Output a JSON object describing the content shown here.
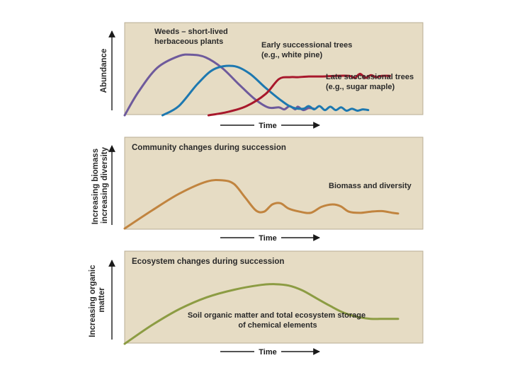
{
  "colors": {
    "panel_bg": "#e6dcc4",
    "panel_border": "#b8ad93",
    "weeds": "#6e5a9c",
    "early_trees": "#1d78b0",
    "late_trees": "#a8182c",
    "biomass": "#c1843f",
    "organic_matter": "#8c9c43"
  },
  "chart_data": [
    {
      "type": "line",
      "title": "",
      "xlabel": "Time",
      "ylabel": "Abundance",
      "xlim": [
        0,
        100
      ],
      "ylim": [
        0,
        100
      ],
      "grid": false,
      "series": [
        {
          "name": "Weeds – short-lived herbaceous plants",
          "color": "#6e5a9c",
          "x": [
            0,
            5,
            12,
            20,
            25,
            30,
            36,
            42,
            48,
            53,
            57,
            59,
            61,
            63,
            64,
            66,
            68,
            70
          ],
          "y": [
            0,
            35,
            72,
            90,
            92,
            88,
            72,
            48,
            25,
            12,
            12,
            9,
            14,
            9,
            13,
            8,
            11,
            10
          ]
        },
        {
          "name": "Early successional trees (e.g., white pine)",
          "color": "#1d78b0",
          "x": [
            14,
            20,
            27,
            33,
            40,
            46,
            52,
            58,
            62,
            66,
            68,
            70,
            72,
            74,
            76,
            78,
            80,
            82,
            84,
            86,
            88,
            90
          ],
          "y": [
            0,
            14,
            48,
            70,
            75,
            64,
            42,
            22,
            12,
            10,
            14,
            9,
            14,
            8,
            13,
            8,
            12,
            7,
            10,
            7,
            9,
            8
          ]
        },
        {
          "name": "Late successional trees (e.g., sugar maple)",
          "color": "#a8182c",
          "x": [
            31,
            38,
            45,
            52,
            57,
            61,
            64,
            68,
            73,
            78,
            83,
            85,
            87,
            89,
            91,
            93,
            95,
            98
          ],
          "y": [
            0,
            5,
            14,
            32,
            55,
            58,
            58,
            59,
            59,
            60,
            60,
            57,
            63,
            57,
            61,
            58,
            60,
            60
          ]
        }
      ]
    },
    {
      "type": "line",
      "title": "Community changes during succession",
      "xlabel": "Time",
      "ylabel": "Increasing biomass increasing diversity",
      "xlim": [
        0,
        100
      ],
      "ylim": [
        0,
        100
      ],
      "grid": false,
      "series": [
        {
          "name": "Biomass and diversity",
          "color": "#c1843f",
          "x": [
            0,
            10,
            20,
            30,
            36,
            40,
            44,
            48,
            51,
            54,
            57,
            60,
            64,
            68,
            72,
            76,
            79,
            82,
            86,
            90,
            94,
            98,
            100
          ],
          "y": [
            0,
            30,
            58,
            78,
            80,
            74,
            52,
            30,
            28,
            40,
            42,
            33,
            28,
            26,
            36,
            40,
            37,
            28,
            26,
            28,
            29,
            26,
            25
          ]
        }
      ]
    },
    {
      "type": "line",
      "title": "Ecosystem changes during succession",
      "xlabel": "Time",
      "ylabel": "Increasing organic matter",
      "xlim": [
        0,
        100
      ],
      "ylim": [
        0,
        100
      ],
      "grid": false,
      "series": [
        {
          "name": "Soil organic matter and total ecosystem storage of chemical elements",
          "color": "#8c9c43",
          "x": [
            0,
            10,
            20,
            30,
            40,
            50,
            55,
            60,
            65,
            70,
            75,
            80,
            85,
            90,
            95,
            100
          ],
          "y": [
            0,
            27,
            50,
            67,
            78,
            85,
            86,
            84,
            77,
            66,
            55,
            45,
            39,
            36,
            36,
            36
          ]
        }
      ]
    }
  ],
  "panels": [
    {
      "ylabel": "Abundance",
      "time_label": "Time",
      "labels": {
        "weeds": [
          "Weeds – short-lived",
          "herbaceous plants"
        ],
        "early": [
          "Early successional trees",
          "(e.g., white pine)"
        ],
        "late": [
          "Late successional trees",
          "(e.g., sugar maple)"
        ]
      }
    },
    {
      "title": "Community changes during succession",
      "ylabel": [
        "Increasing biomass",
        "increasing diversity"
      ],
      "series_label": "Biomass and diversity",
      "time_label": "Time"
    },
    {
      "title": "Ecosystem changes during succession",
      "ylabel": [
        "Increasing organic",
        "matter"
      ],
      "series_label": [
        "Soil organic matter and total ecosystem storage",
        "of chemical elements"
      ],
      "time_label": "Time"
    }
  ]
}
